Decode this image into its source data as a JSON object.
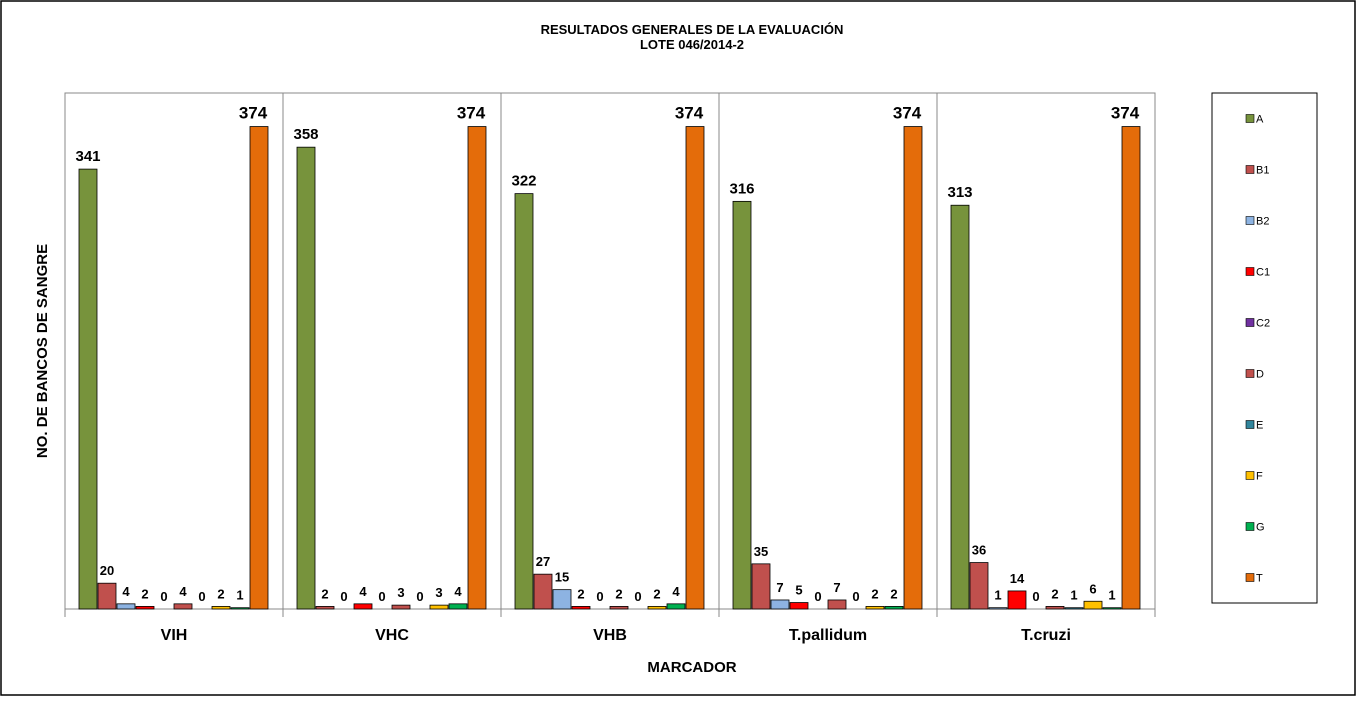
{
  "chart_data": {
    "type": "bar",
    "title": "RESULTADOS GENERALES DE LA EVALUACIÓN",
    "subtitle": "LOTE 046/2014-2",
    "x_label": "MARCADOR",
    "y_label": "NO. DE BANCOS DE SANGRE",
    "categories": [
      "VIH",
      "VHC",
      "VHB",
      "T.pallidum",
      "T.cruzi"
    ],
    "ylim": [
      0,
      400
    ],
    "legend": "right",
    "series": [
      {
        "name": "A",
        "color": "#77933c",
        "values": [
          341,
          358,
          322,
          316,
          313
        ]
      },
      {
        "name": "B1",
        "color": "#c0504d",
        "values": [
          20,
          2,
          27,
          35,
          36
        ]
      },
      {
        "name": "B2",
        "color": "#8db3e2",
        "values": [
          4,
          0,
          15,
          7,
          1
        ]
      },
      {
        "name": "C1",
        "color": "#ff0000",
        "values": [
          2,
          4,
          2,
          5,
          14
        ]
      },
      {
        "name": "C2",
        "color": "#7030a0",
        "values": [
          0,
          0,
          0,
          0,
          0
        ]
      },
      {
        "name": "D",
        "color": "#c0504d",
        "values": [
          4,
          3,
          2,
          7,
          2
        ]
      },
      {
        "name": "E",
        "color": "#31859c",
        "values": [
          0,
          0,
          0,
          0,
          1
        ]
      },
      {
        "name": "F",
        "color": "#ffc000",
        "values": [
          2,
          3,
          2,
          2,
          6
        ]
      },
      {
        "name": "G",
        "color": "#00b050",
        "values": [
          1,
          4,
          4,
          2,
          1
        ]
      },
      {
        "name": "T",
        "color": "#e46c0a",
        "values": [
          374,
          374,
          374,
          374,
          374
        ]
      }
    ]
  }
}
